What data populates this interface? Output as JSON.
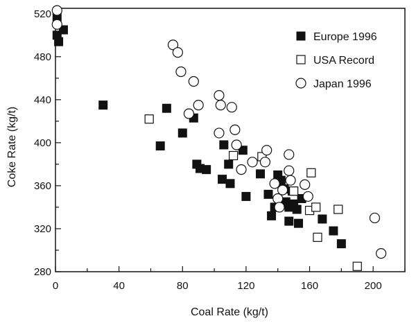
{
  "chart_data": {
    "type": "scatter",
    "xlabel": "Coal Rate (kg/t)",
    "ylabel": "Coke Rate (kg/t)",
    "xlim": [
      0,
      220
    ],
    "ylim": [
      280,
      525
    ],
    "x_ticks": [
      0,
      40,
      80,
      120,
      160,
      200
    ],
    "y_ticks": [
      280,
      320,
      360,
      400,
      440,
      480,
      520
    ],
    "grid": false,
    "legend_position": "top-right",
    "series": [
      {
        "name": "Europe 1996",
        "marker": "filled-square",
        "color": "#111111",
        "points": [
          [
            1,
            517
          ],
          [
            1,
            500
          ],
          [
            2,
            494
          ],
          [
            5,
            505
          ],
          [
            30,
            435
          ],
          [
            66,
            397
          ],
          [
            70,
            432
          ],
          [
            80,
            409
          ],
          [
            87,
            423
          ],
          [
            89,
            380
          ],
          [
            91,
            376
          ],
          [
            95,
            375
          ],
          [
            105,
            366
          ],
          [
            106,
            398
          ],
          [
            109,
            380
          ],
          [
            110,
            362
          ],
          [
            118,
            393
          ],
          [
            120,
            350
          ],
          [
            129,
            371
          ],
          [
            134,
            352
          ],
          [
            136,
            332
          ],
          [
            138,
            340
          ],
          [
            140,
            370
          ],
          [
            142,
            365
          ],
          [
            144,
            357
          ],
          [
            145,
            345
          ],
          [
            147,
            340
          ],
          [
            147,
            327
          ],
          [
            149,
            355
          ],
          [
            150,
            343
          ],
          [
            152,
            338
          ],
          [
            153,
            325
          ],
          [
            155,
            348
          ],
          [
            168,
            329
          ],
          [
            175,
            318
          ],
          [
            180,
            306
          ]
        ]
      },
      {
        "name": "USA Record",
        "marker": "open-square",
        "color": "#111111",
        "points": [
          [
            59,
            422
          ],
          [
            112,
            388
          ],
          [
            130,
            387
          ],
          [
            150,
            355
          ],
          [
            160,
            337
          ],
          [
            161,
            372
          ],
          [
            164,
            340
          ],
          [
            165,
            312
          ],
          [
            178,
            338
          ],
          [
            190,
            285
          ]
        ]
      },
      {
        "name": "Japan 1996",
        "marker": "open-circle",
        "color": "#111111",
        "points": [
          [
            1,
            523
          ],
          [
            1,
            510
          ],
          [
            74,
            491
          ],
          [
            77,
            484
          ],
          [
            79,
            466
          ],
          [
            84,
            427
          ],
          [
            87,
            457
          ],
          [
            90,
            435
          ],
          [
            103,
            444
          ],
          [
            103,
            409
          ],
          [
            104,
            435
          ],
          [
            111,
            433
          ],
          [
            113,
            412
          ],
          [
            114,
            398
          ],
          [
            117,
            375
          ],
          [
            124,
            382
          ],
          [
            132,
            382
          ],
          [
            133,
            393
          ],
          [
            138,
            362
          ],
          [
            140,
            348
          ],
          [
            141,
            340
          ],
          [
            143,
            356
          ],
          [
            147,
            389
          ],
          [
            147,
            374
          ],
          [
            148,
            365
          ],
          [
            157,
            361
          ],
          [
            159,
            350
          ],
          [
            201,
            330
          ],
          [
            205,
            297
          ]
        ]
      }
    ]
  }
}
